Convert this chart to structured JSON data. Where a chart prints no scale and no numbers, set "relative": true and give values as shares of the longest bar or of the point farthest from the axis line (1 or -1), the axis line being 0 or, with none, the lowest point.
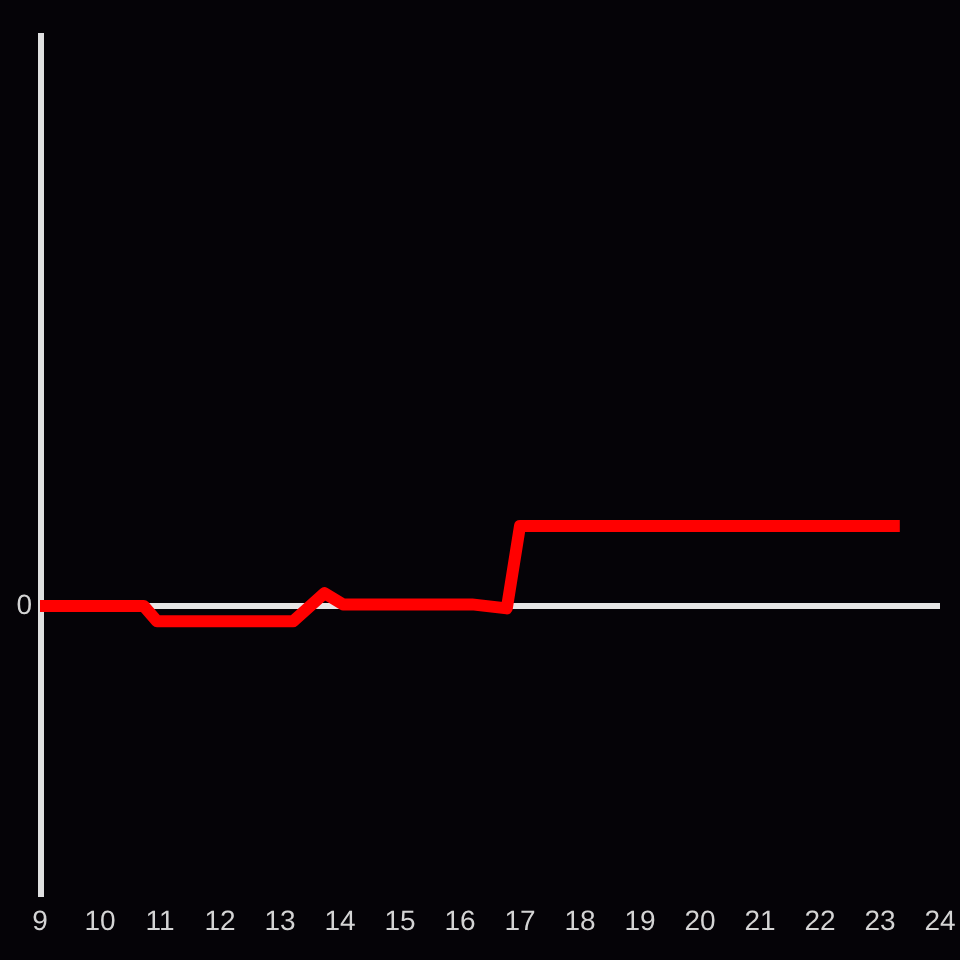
{
  "chart_data": {
    "type": "line",
    "relative": true,
    "x": [
      9,
      10.73,
      10.95,
      13.22,
      13.74,
      14.05,
      16.2,
      16.78,
      17,
      23.33
    ],
    "series": [
      {
        "color": "#ff0000",
        "values": [
          0,
          0,
          -0.19,
          -0.19,
          0.16,
          0.02,
          0.02,
          -0.03,
          1,
          1
        ]
      }
    ],
    "xlim": [
      9,
      24
    ],
    "xticks": [
      9,
      10,
      11,
      12,
      13,
      14,
      15,
      16,
      17,
      18,
      19,
      20,
      21,
      22,
      23,
      24
    ],
    "ref_lines": [
      {
        "axis": "y",
        "value": 0,
        "label": "0",
        "color": "#e6e6e6"
      }
    ]
  }
}
